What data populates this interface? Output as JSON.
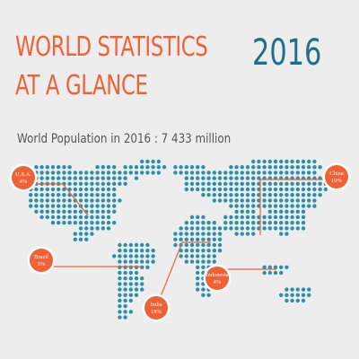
{
  "header": {
    "title_line1": "WORLD STATISTICS",
    "title_line2": "AT A GLANCE",
    "year": "2016"
  },
  "population_text": "World Population in 2016 :  7 433 million",
  "colors": {
    "accent_orange": "#f06136",
    "accent_teal": "#2a8fa9",
    "title_blue": "#1d6f8a",
    "background": "#ededed"
  },
  "pins": [
    {
      "country": "U.S.A.",
      "share": "4%"
    },
    {
      "country": "China",
      "share": "19%"
    },
    {
      "country": "Brazil",
      "share": "3%"
    },
    {
      "country": "India",
      "share": "18%"
    },
    {
      "country": "Indonesia",
      "share": "4%"
    }
  ]
}
